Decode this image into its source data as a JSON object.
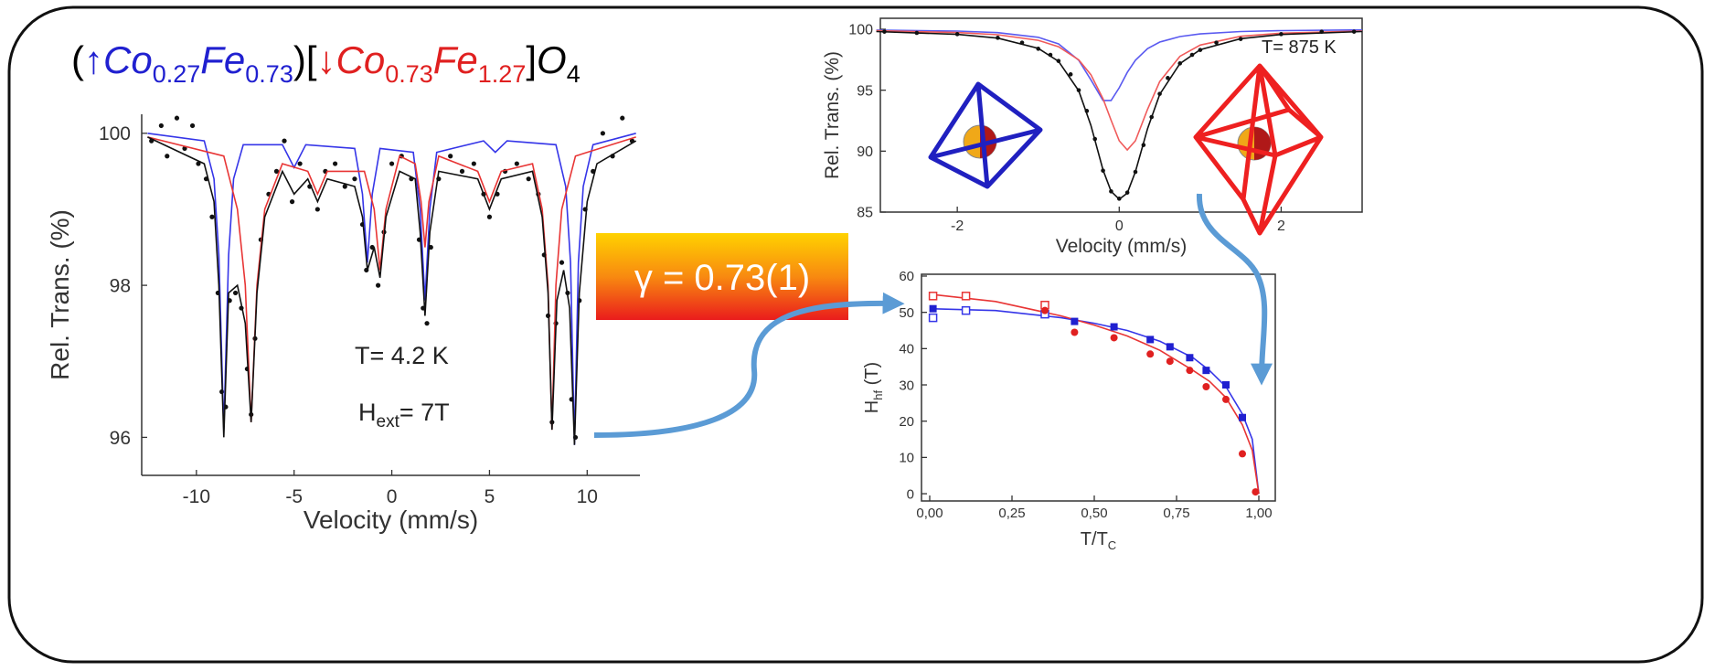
{
  "formula": [
    "(",
    "↑",
    "Co",
    "0.27",
    "Fe",
    "0.73",
    ")[",
    "↓",
    "Co",
    "0.73",
    "Fe",
    "1.27",
    "]",
    "O",
    "4"
  ],
  "gamma_label": "γ = 0.73(1)",
  "chart_data": [
    {
      "type": "scatter",
      "x_label": [
        "Velocity (mm/s)"
      ],
      "y_label": [
        "Rel. Trans. (%)"
      ],
      "box": false,
      "xlim": [
        -12.8,
        12.7
      ],
      "ylim": [
        95.5,
        100.25
      ],
      "xticks": [
        -10,
        -5,
        0,
        5,
        10
      ],
      "yticks": [
        96,
        98,
        100
      ],
      "annotations": [
        [
          "T= 4.2 K"
        ],
        [
          "H",
          "ext",
          "= 7T"
        ]
      ],
      "series": [
        {
          "style": "points",
          "marker": "circle",
          "filled": true,
          "color": "#111111",
          "x": [
            -12.3,
            -11.8,
            -11.5,
            -11.0,
            -10.6,
            -10.2,
            -9.9,
            -9.5,
            -9.2,
            -8.9,
            -8.7,
            -8.5,
            -8.3,
            -8.0,
            -7.7,
            -7.4,
            -7.2,
            -7.0,
            -6.7,
            -6.3,
            -5.9,
            -5.5,
            -5.1,
            -4.7,
            -4.2,
            -3.8,
            -3.4,
            -2.9,
            -2.4,
            -1.9,
            -1.5,
            -1.3,
            -1.0,
            -0.7,
            -0.4,
            0.0,
            0.5,
            1.0,
            1.4,
            1.6,
            1.8,
            2.0,
            2.4,
            3.0,
            3.6,
            4.2,
            4.7,
            5.0,
            5.4,
            5.8,
            6.4,
            7.0,
            7.5,
            7.8,
            8.0,
            8.2,
            8.4,
            8.7,
            9.0,
            9.2,
            9.4,
            9.6,
            9.9,
            10.3,
            10.8,
            11.3,
            11.8,
            12.3
          ],
          "values": [
            99.9,
            100.1,
            99.7,
            100.2,
            99.8,
            100.1,
            99.6,
            99.4,
            98.9,
            97.9,
            96.6,
            96.4,
            97.8,
            97.9,
            97.7,
            96.9,
            96.3,
            97.3,
            98.6,
            99.2,
            99.5,
            99.9,
            99.1,
            99.6,
            99.3,
            99.0,
            99.5,
            99.6,
            99.3,
            99.4,
            98.8,
            98.2,
            98.5,
            98.0,
            98.7,
            99.6,
            99.7,
            99.4,
            98.6,
            97.7,
            97.5,
            98.5,
            99.4,
            99.7,
            99.5,
            99.6,
            99.2,
            98.9,
            99.2,
            99.5,
            99.6,
            99.4,
            99.2,
            98.4,
            97.6,
            96.2,
            97.5,
            98.3,
            97.9,
            96.5,
            96.0,
            97.8,
            99.0,
            99.5,
            100.0,
            99.7,
            100.2,
            99.9
          ]
        },
        {
          "style": "line",
          "color": "#3535e8",
          "x": [
            -12.5,
            -9.6,
            -9.1,
            -8.85,
            -8.6,
            -8.35,
            -8.1,
            -7.6,
            -5.6,
            -5.0,
            -4.4,
            -1.9,
            -1.5,
            -1.25,
            -1.0,
            -0.6,
            1.1,
            1.45,
            1.7,
            1.95,
            2.3,
            4.7,
            5.3,
            5.9,
            8.4,
            8.9,
            9.15,
            9.35,
            9.55,
            9.8,
            10.3,
            12.5
          ],
          "values": [
            100.0,
            99.9,
            99.4,
            98.4,
            96.1,
            98.4,
            99.4,
            99.85,
            99.85,
            99.55,
            99.85,
            99.8,
            99.2,
            98.3,
            99.2,
            99.8,
            99.75,
            99.0,
            97.8,
            99.0,
            99.75,
            99.9,
            99.75,
            99.9,
            99.85,
            99.3,
            98.3,
            95.9,
            98.3,
            99.3,
            99.85,
            100.0
          ]
        },
        {
          "style": "line",
          "color": "#e83535",
          "x": [
            -12.5,
            -8.6,
            -7.9,
            -7.5,
            -7.2,
            -6.9,
            -6.5,
            -5.6,
            -4.3,
            -3.8,
            -3.3,
            -1.4,
            -0.9,
            -0.6,
            -0.3,
            0.4,
            1.2,
            1.5,
            1.7,
            1.9,
            2.4,
            4.4,
            5.0,
            5.6,
            7.2,
            7.7,
            8.0,
            8.2,
            8.4,
            8.7,
            9.4,
            12.5
          ],
          "values": [
            99.95,
            99.7,
            99.0,
            98.0,
            96.2,
            98.0,
            99.0,
            99.6,
            99.5,
            99.2,
            99.5,
            99.5,
            99.0,
            98.2,
            99.0,
            99.7,
            99.6,
            99.1,
            98.5,
            99.1,
            99.7,
            99.5,
            99.1,
            99.5,
            99.6,
            99.0,
            98.0,
            96.1,
            98.0,
            99.0,
            99.7,
            99.95
          ]
        },
        {
          "style": "line",
          "color": "#111111",
          "x": [
            -12.5,
            -9.6,
            -9.1,
            -8.85,
            -8.6,
            -8.35,
            -7.9,
            -7.5,
            -7.2,
            -6.9,
            -6.5,
            -5.6,
            -5.0,
            -4.3,
            -3.8,
            -3.3,
            -1.9,
            -1.5,
            -1.25,
            -0.9,
            -0.6,
            -0.3,
            0.4,
            1.2,
            1.45,
            1.7,
            1.95,
            2.4,
            4.4,
            5.0,
            5.3,
            5.6,
            7.2,
            7.7,
            8.0,
            8.2,
            8.45,
            8.8,
            9.1,
            9.35,
            9.6,
            10.0,
            10.5,
            12.5
          ],
          "values": [
            99.95,
            99.6,
            99.1,
            98.0,
            96.0,
            97.9,
            98.0,
            97.5,
            96.2,
            97.9,
            98.9,
            99.5,
            99.2,
            99.4,
            99.1,
            99.4,
            99.3,
            98.9,
            98.2,
            98.5,
            98.1,
            98.9,
            99.5,
            99.4,
            98.7,
            97.6,
            98.7,
            99.5,
            99.4,
            99.0,
            99.2,
            99.4,
            99.5,
            98.9,
            97.9,
            96.1,
            97.8,
            98.2,
            97.7,
            95.9,
            97.9,
            99.1,
            99.6,
            99.9
          ]
        }
      ]
    },
    {
      "type": "scatter",
      "x_label": [
        "Velocity (mm/s)"
      ],
      "y_label": [
        "Rel. Trans. (%)"
      ],
      "box": true,
      "xlim": [
        -2.95,
        3.0
      ],
      "ylim": [
        85,
        100.9
      ],
      "xticks": [
        -2,
        0,
        2
      ],
      "yticks": [
        85,
        90,
        95,
        100
      ],
      "annotations": [
        [
          "T= 875 K"
        ]
      ],
      "series": [
        {
          "style": "line",
          "color": "#5a5af0",
          "x": [
            -3,
            -2,
            -1.5,
            -1,
            -0.75,
            -0.5,
            -0.35,
            -0.2,
            -0.1,
            0,
            0.1,
            0.2,
            0.35,
            0.5,
            0.75,
            1,
            1.5,
            2,
            3
          ],
          "values": [
            99.93,
            99.85,
            99.72,
            99.34,
            98.8,
            97.46,
            95.85,
            94.16,
            94.16,
            95.2,
            96.46,
            97.46,
            98.41,
            98.95,
            99.4,
            99.62,
            99.81,
            99.89,
            99.95
          ]
        },
        {
          "style": "line",
          "color": "#f05a5a",
          "x": [
            -3,
            -2,
            -1.5,
            -1,
            -0.75,
            -0.5,
            -0.35,
            -0.2,
            -0.1,
            0,
            0.1,
            0.2,
            0.35,
            0.5,
            0.75,
            1,
            1.5,
            2,
            3
          ],
          "values": [
            99.88,
            99.73,
            99.55,
            99.09,
            98.57,
            97.49,
            96.27,
            94.29,
            92.54,
            90.85,
            90.1,
            90.85,
            93.44,
            95.71,
            97.78,
            98.7,
            99.42,
            99.68,
            99.86
          ]
        },
        {
          "style": "points",
          "marker": "circle",
          "filled": true,
          "color": "#111111",
          "x": [
            -2.9,
            -2.5,
            -2,
            -1.5,
            -1.2,
            -1,
            -0.85,
            -0.75,
            -0.6,
            -0.5,
            -0.4,
            -0.3,
            -0.2,
            -0.1,
            0,
            0.1,
            0.2,
            0.3,
            0.4,
            0.5,
            0.6,
            0.75,
            0.9,
            1,
            1.2,
            1.5,
            2,
            2.5,
            2.9
          ],
          "values": [
            99.8,
            99.7,
            99.6,
            99.3,
            98.9,
            98.4,
            97.9,
            97.4,
            96.3,
            95.0,
            93.3,
            91.0,
            88.4,
            86.7,
            86.1,
            86.6,
            88.3,
            90.5,
            92.8,
            94.7,
            96.0,
            97.2,
            97.9,
            98.3,
            98.9,
            99.2,
            99.6,
            99.8,
            99.8
          ]
        },
        {
          "style": "line",
          "color": "#111111",
          "x": [
            -3,
            -2,
            -1.5,
            -1,
            -0.75,
            -0.5,
            -0.35,
            -0.2,
            -0.1,
            0,
            0.1,
            0.2,
            0.35,
            0.5,
            0.75,
            1,
            1.5,
            2,
            3
          ],
          "values": [
            99.81,
            99.58,
            99.27,
            98.43,
            97.37,
            94.95,
            92.12,
            88.45,
            86.7,
            86.05,
            86.56,
            88.31,
            91.85,
            94.66,
            97.18,
            98.32,
            99.23,
            99.57,
            99.81
          ]
        }
      ]
    },
    {
      "type": "scatter",
      "x_label": [
        "T/T",
        "C"
      ],
      "y_label": [
        "H",
        "hf",
        " (T)"
      ],
      "box": true,
      "xlim": [
        -0.025,
        1.05
      ],
      "ylim": [
        -2,
        60.5
      ],
      "xticks": [
        {
          "value": 0,
          "label": "0,00"
        },
        {
          "value": 0.25,
          "label": "0,25"
        },
        {
          "value": 0.5,
          "label": "0,50"
        },
        {
          "value": 0.75,
          "label": "0,75"
        },
        {
          "value": 1,
          "label": "1,00"
        }
      ],
      "yticks": [
        0,
        10,
        20,
        30,
        40,
        50,
        60
      ],
      "series": [
        {
          "style": "line",
          "color": "#3535e8",
          "x": [
            0,
            0.2,
            0.4,
            0.5,
            0.6,
            0.7,
            0.8,
            0.85,
            0.9,
            0.95,
            0.98,
            1.0
          ],
          "values": [
            51,
            50.5,
            48.5,
            47,
            45,
            42,
            37.5,
            34,
            29.5,
            22,
            15,
            0
          ]
        },
        {
          "style": "line",
          "color": "#e83535",
          "x": [
            0,
            0.2,
            0.4,
            0.5,
            0.6,
            0.7,
            0.8,
            0.85,
            0.9,
            0.95,
            0.98,
            1.0
          ],
          "values": [
            55,
            53,
            49,
            46.5,
            43.5,
            39.5,
            34,
            31,
            26.5,
            19,
            12,
            0
          ]
        },
        {
          "style": "points",
          "marker": "square",
          "filled": false,
          "color": "#e83535",
          "x": [
            0.01,
            0.11,
            0.35
          ],
          "values": [
            54.5,
            54.5,
            52
          ]
        },
        {
          "style": "points",
          "marker": "square",
          "filled": false,
          "color": "#3535e8",
          "x": [
            0.01,
            0.11,
            0.35
          ],
          "values": [
            48.5,
            50.5,
            49.5
          ]
        },
        {
          "style": "points",
          "marker": "square",
          "filled": true,
          "color": "#2020d0",
          "x": [
            0.01,
            0.44,
            0.56,
            0.67,
            0.73,
            0.79,
            0.84,
            0.9,
            0.95
          ],
          "values": [
            51,
            47.5,
            46,
            42.5,
            40.5,
            37.5,
            34,
            30,
            21
          ]
        },
        {
          "style": "points",
          "marker": "circle",
          "filled": true,
          "color": "#e02020",
          "x": [
            0.35,
            0.44,
            0.56,
            0.67,
            0.73,
            0.79,
            0.84,
            0.9,
            0.95,
            0.99
          ],
          "values": [
            50.5,
            44.5,
            43,
            38.5,
            36.5,
            34,
            29.5,
            26,
            11,
            0.5
          ]
        }
      ]
    }
  ]
}
